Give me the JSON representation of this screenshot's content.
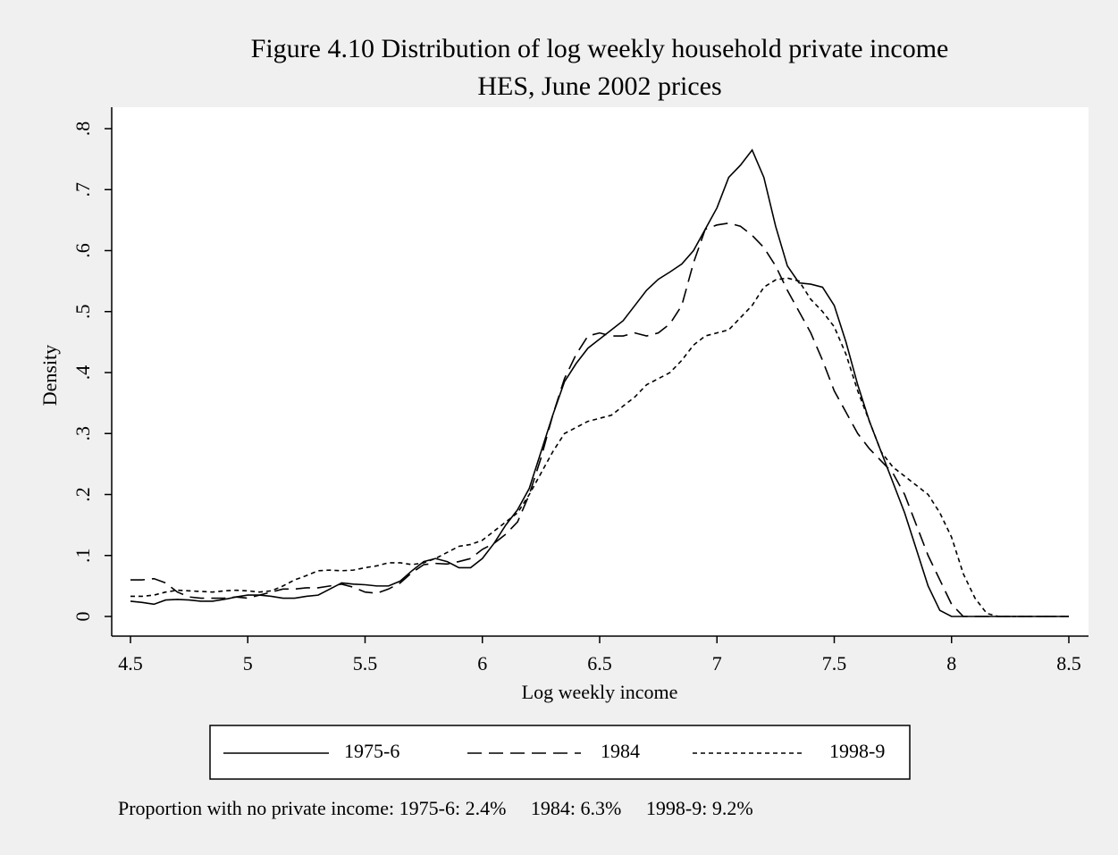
{
  "chart_data": {
    "type": "line",
    "title": "Figure 4.10 Distribution of log weekly household private income",
    "subtitle": "HES, June 2002 prices",
    "x_label": "Log weekly income",
    "y_label": "Density",
    "annotation": "Proportion with no private income: 1975-6: 2.4%     1984: 6.3%     1998-9: 9.2%",
    "x": [
      4.5,
      4.55,
      4.6,
      4.65,
      4.7,
      4.75,
      4.8,
      4.85,
      4.9,
      4.95,
      5,
      5.05,
      5.1,
      5.15,
      5.2,
      5.25,
      5.3,
      5.35,
      5.4,
      5.45,
      5.5,
      5.55,
      5.6,
      5.65,
      5.7,
      5.75,
      5.8,
      5.85,
      5.9,
      5.95,
      6,
      6.05,
      6.1,
      6.15,
      6.2,
      6.25,
      6.3,
      6.35,
      6.4,
      6.45,
      6.5,
      6.55,
      6.6,
      6.65,
      6.7,
      6.75,
      6.8,
      6.85,
      6.9,
      6.95,
      7,
      7.05,
      7.1,
      7.15,
      7.2,
      7.25,
      7.3,
      7.35,
      7.4,
      7.45,
      7.5,
      7.55,
      7.6,
      7.65,
      7.7,
      7.75,
      7.8,
      7.85,
      7.9,
      7.95,
      8,
      8.05,
      8.1,
      8.15,
      8.2,
      8.25,
      8.3,
      8.35,
      8.4,
      8.45,
      8.5
    ],
    "series": [
      {
        "name": "1975-6",
        "color": "#000000",
        "style": "solid",
        "values": [
          0.025,
          0.023,
          0.02,
          0.027,
          0.028,
          0.027,
          0.025,
          0.025,
          0.028,
          0.032,
          0.035,
          0.035,
          0.033,
          0.03,
          0.03,
          0.033,
          0.035,
          0.045,
          0.055,
          0.053,
          0.052,
          0.05,
          0.05,
          0.058,
          0.075,
          0.09,
          0.095,
          0.09,
          0.08,
          0.08,
          0.095,
          0.12,
          0.15,
          0.175,
          0.21,
          0.27,
          0.33,
          0.385,
          0.415,
          0.44,
          0.455,
          0.47,
          0.485,
          0.51,
          0.535,
          0.553,
          0.565,
          0.578,
          0.6,
          0.635,
          0.67,
          0.72,
          0.74,
          0.765,
          0.72,
          0.64,
          0.575,
          0.547,
          0.545,
          0.54,
          0.51,
          0.45,
          0.38,
          0.32,
          0.27,
          0.22,
          0.17,
          0.11,
          0.05,
          0.01,
          0,
          0,
          0,
          0,
          0,
          0,
          0,
          0,
          0,
          0,
          0
        ]
      },
      {
        "name": "1984",
        "color": "#000000",
        "style": "dashed",
        "values": [
          0.06,
          0.06,
          0.062,
          0.055,
          0.04,
          0.032,
          0.03,
          0.03,
          0.03,
          0.032,
          0.03,
          0.035,
          0.04,
          0.045,
          0.045,
          0.047,
          0.047,
          0.05,
          0.053,
          0.048,
          0.04,
          0.038,
          0.045,
          0.055,
          0.072,
          0.085,
          0.087,
          0.086,
          0.09,
          0.095,
          0.11,
          0.12,
          0.135,
          0.155,
          0.2,
          0.26,
          0.33,
          0.39,
          0.43,
          0.46,
          0.465,
          0.46,
          0.46,
          0.465,
          0.46,
          0.465,
          0.48,
          0.51,
          0.58,
          0.635,
          0.642,
          0.645,
          0.64,
          0.625,
          0.605,
          0.575,
          0.535,
          0.5,
          0.465,
          0.42,
          0.37,
          0.335,
          0.3,
          0.275,
          0.255,
          0.235,
          0.2,
          0.15,
          0.1,
          0.06,
          0.02,
          0,
          0,
          0,
          0,
          0,
          0,
          0,
          0,
          0,
          0
        ]
      },
      {
        "name": "1998-9",
        "color": "#000000",
        "style": "dotted",
        "values": [
          0.033,
          0.033,
          0.035,
          0.04,
          0.043,
          0.042,
          0.041,
          0.04,
          0.042,
          0.043,
          0.042,
          0.04,
          0.042,
          0.05,
          0.06,
          0.067,
          0.075,
          0.076,
          0.075,
          0.076,
          0.08,
          0.083,
          0.088,
          0.088,
          0.085,
          0.088,
          0.095,
          0.105,
          0.115,
          0.118,
          0.125,
          0.14,
          0.155,
          0.17,
          0.2,
          0.235,
          0.27,
          0.3,
          0.31,
          0.32,
          0.325,
          0.33,
          0.345,
          0.36,
          0.38,
          0.39,
          0.4,
          0.42,
          0.445,
          0.46,
          0.465,
          0.47,
          0.49,
          0.51,
          0.54,
          0.552,
          0.555,
          0.55,
          0.52,
          0.5,
          0.475,
          0.43,
          0.37,
          0.32,
          0.27,
          0.245,
          0.23,
          0.215,
          0.2,
          0.17,
          0.13,
          0.07,
          0.03,
          0.005,
          0,
          0,
          0,
          0,
          0,
          0,
          0
        ]
      }
    ],
    "xlim": [
      4.5,
      8.5
    ],
    "ylim": [
      0,
      0.8
    ],
    "xticks": [
      4.5,
      5,
      5.5,
      6,
      6.5,
      7,
      7.5,
      8,
      8.5
    ],
    "yticks": [
      0,
      {
        "value": 0.1,
        "label": ".1"
      },
      {
        "value": 0.2,
        "label": ".2"
      },
      {
        "value": 0.3,
        "label": ".3"
      },
      {
        "value": 0.4,
        "label": ".4"
      },
      {
        "value": 0.5,
        "label": ".5"
      },
      {
        "value": 0.6,
        "label": ".6"
      },
      {
        "value": 0.7,
        "label": ".7"
      },
      {
        "value": 0.8,
        "label": ".8"
      }
    ],
    "grid": false,
    "legend": "bottom"
  }
}
